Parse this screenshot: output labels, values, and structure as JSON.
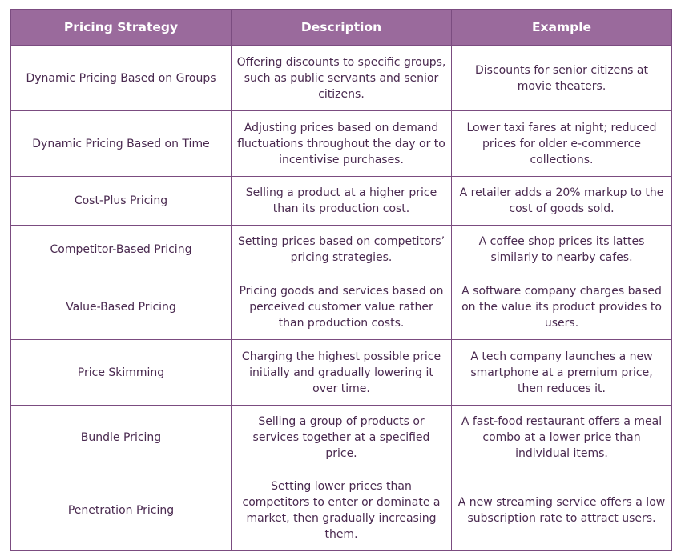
{
  "table": {
    "headers": [
      "Pricing Strategy",
      "Description",
      "Example"
    ],
    "rows": [
      [
        "Dynamic Pricing Based on Groups",
        "Offering discounts to specific groups, such as public servants and senior citizens.",
        "Discounts for senior citizens at movie theaters."
      ],
      [
        "Dynamic Pricing Based on Time",
        "Adjusting prices based on demand fluctuations throughout the day or to incentivise purchases.",
        "Lower taxi fares at night; reduced prices for older e-commerce collections."
      ],
      [
        "Cost-Plus Pricing",
        "Selling a product at a higher price than its production cost.",
        "A retailer adds a 20% markup to the cost of goods sold."
      ],
      [
        "Competitor-Based Pricing",
        "Setting prices based on competitors’ pricing strategies.",
        "A coffee shop prices its lattes similarly to nearby cafes."
      ],
      [
        "Value-Based Pricing",
        "Pricing goods and services based on perceived customer value rather than production costs.",
        "A software company charges based on the value its product provides to users."
      ],
      [
        "Price Skimming",
        "Charging the highest possible price initially and gradually lowering it over time.",
        "A tech company launches a new smartphone at a premium price, then reduces it."
      ],
      [
        "Bundle Pricing",
        "Selling a group of products or services together at a specified price.",
        "A fast-food restaurant offers a meal combo at a lower price than individual items."
      ],
      [
        "Penetration Pricing",
        "Setting lower prices than competitors to enter or dominate a market, then gradually increasing them.",
        "A new streaming service offers a low subscription rate to attract users."
      ]
    ]
  },
  "colors": {
    "header_bg": "#9a6a9c",
    "border": "#7b4c80",
    "text": "#4a2a50"
  }
}
